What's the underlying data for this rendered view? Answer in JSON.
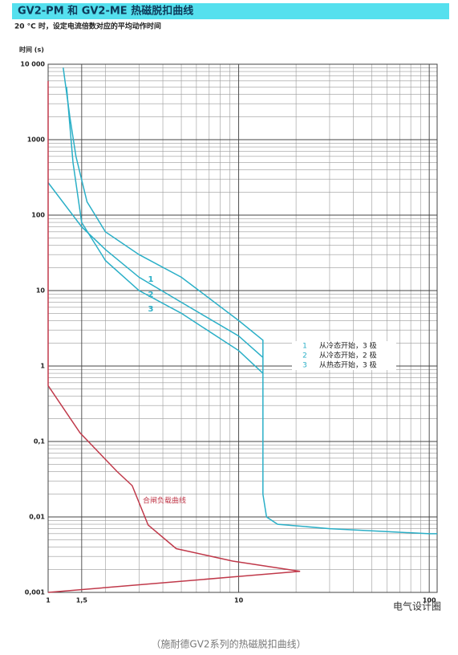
{
  "chart_data": {
    "type": "line",
    "title": "GV2-PM 和 GV2-ME 热磁脱扣曲线",
    "subtitle": "20 °C 时，设定电流倍数对应的平均动作时间",
    "y_label": "时间 (s)",
    "caption": "（施耐德GV2系列的热磁脱扣曲线）",
    "watermark": "电气设计圈",
    "log_x": true,
    "log_y": true,
    "grid": true,
    "xlim": [
      1,
      110
    ],
    "ylim": [
      0.001,
      10000
    ],
    "xticks": [
      1,
      {
        "value": 1.5,
        "label": "1,5"
      },
      10,
      100
    ],
    "yticks": [
      {
        "value": 10000,
        "label": "10 000"
      },
      1000,
      100,
      10,
      1,
      {
        "value": 0.1,
        "label": "0,1"
      },
      {
        "value": 0.01,
        "label": "0,01"
      },
      {
        "value": 0.001,
        "label": "0,001"
      }
    ],
    "series": [
      {
        "name": "从冷态开始，3 极",
        "label": "1",
        "color": "#2aafc7",
        "x": [
          1.2,
          1.3,
          1.4,
          1.6,
          2,
          3,
          5,
          10,
          13.4,
          13.4,
          14,
          16,
          30,
          100,
          110
        ],
        "values": [
          9000,
          2000,
          600,
          150,
          60,
          30,
          15,
          4,
          2.2,
          0.02,
          0.01,
          0.008,
          0.007,
          0.006,
          0.006
        ]
      },
      {
        "name": "从冷态开始，2 极",
        "label": "2",
        "color": "#2aafc7",
        "x": [
          1,
          1.5,
          2,
          3,
          5,
          10,
          13.4
        ],
        "values": [
          270,
          70,
          35,
          15,
          7,
          2.5,
          1.3
        ]
      },
      {
        "name": "从热态开始，3 极",
        "label": "3",
        "color": "#2aafc7",
        "x": [
          1.25,
          1.35,
          1.5,
          2,
          3,
          5,
          10,
          13.4
        ],
        "values": [
          5000,
          500,
          80,
          25,
          10,
          5,
          1.6,
          0.8
        ]
      },
      {
        "name": "合闸负载曲线",
        "color": "#c0394a",
        "x": [
          1,
          1,
          1.47,
          2.3,
          2.76,
          3.35,
          4.7,
          9.3,
          21,
          9.3,
          1
        ],
        "values": [
          6000,
          0.55,
          0.13,
          0.04,
          0.026,
          0.0078,
          0.0038,
          0.0026,
          0.0019,
          0.0016,
          0.001
        ]
      }
    ]
  }
}
